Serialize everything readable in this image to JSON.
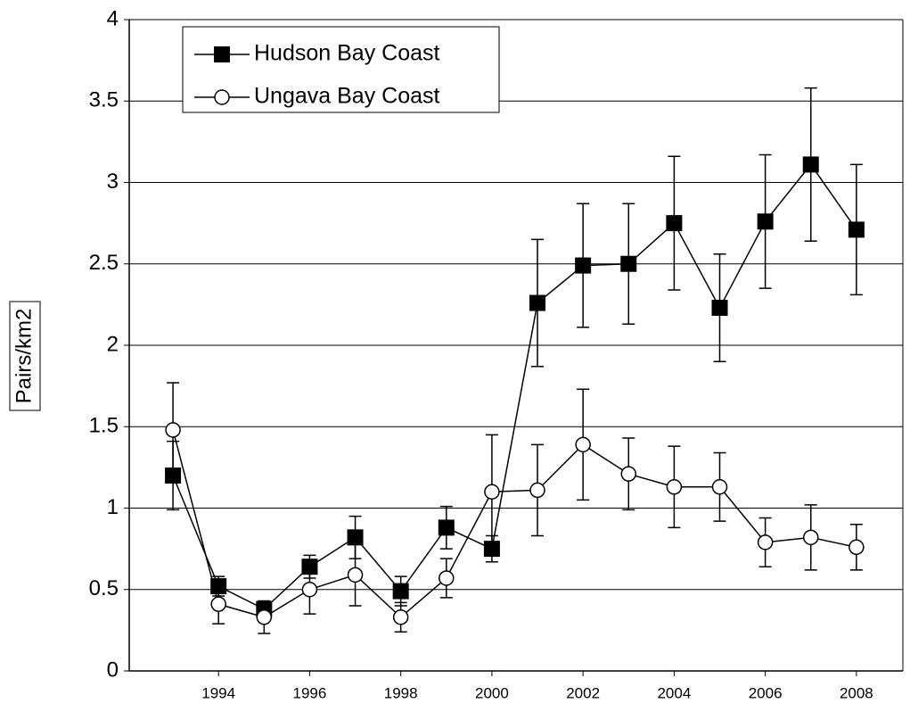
{
  "chart_data": {
    "type": "line",
    "y_label": "Pairs/km2",
    "x": [
      1993,
      1994,
      1995,
      1996,
      1997,
      1998,
      1999,
      2000,
      2001,
      2002,
      2003,
      2004,
      2005,
      2006,
      2007,
      2008
    ],
    "series": [
      {
        "name": "Hudson Bay Coast",
        "color": "#000000",
        "marker": "square",
        "values": [
          1.2,
          0.52,
          0.38,
          0.64,
          0.82,
          0.49,
          0.88,
          0.75,
          2.26,
          2.49,
          2.5,
          2.75,
          2.23,
          2.76,
          3.11,
          2.71
        ],
        "errors": [
          0.21,
          0.06,
          0.03,
          0.07,
          0.13,
          0.09,
          0.13,
          0.08,
          0.39,
          0.38,
          0.37,
          0.41,
          0.33,
          0.41,
          0.47,
          0.4
        ]
      },
      {
        "name": "Ungava Bay Coast",
        "color": "#000000",
        "marker": "circle",
        "values": [
          1.48,
          0.41,
          0.33,
          0.5,
          0.59,
          0.33,
          0.57,
          1.1,
          1.11,
          1.39,
          1.21,
          1.13,
          1.13,
          0.79,
          0.82,
          0.76
        ],
        "errors": [
          0.29,
          0.12,
          0.1,
          0.15,
          0.19,
          0.09,
          0.12,
          0.35,
          0.28,
          0.34,
          0.22,
          0.25,
          0.21,
          0.15,
          0.2,
          0.14
        ]
      }
    ],
    "xlim": [
      1992.04,
      2009.02
    ],
    "xticks": [
      1994,
      1996,
      1998,
      2000,
      2002,
      2004,
      2006,
      2008
    ],
    "ylim": [
      0,
      4
    ],
    "yticks": [
      0,
      0.5,
      1,
      1.5,
      2,
      2.5,
      3,
      3.5,
      4
    ],
    "grid": true,
    "legend": "top-left"
  }
}
